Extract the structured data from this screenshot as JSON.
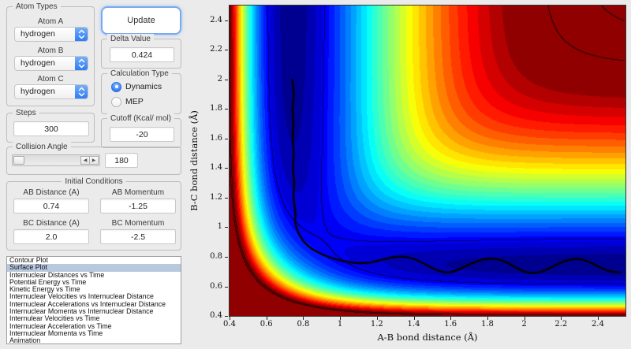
{
  "colors": {
    "background": "#ebebeb",
    "accent_blue": "#2e7bf6",
    "list_selection": "#b8c8de"
  },
  "atom_types": {
    "title": "Atom Types",
    "fields": [
      {
        "label": "Atom A",
        "value": "hydrogen"
      },
      {
        "label": "Atom B",
        "value": "hydrogen"
      },
      {
        "label": "Atom C",
        "value": "hydrogen"
      }
    ]
  },
  "update": {
    "label": "Update"
  },
  "delta_value": {
    "title": "Delta Value",
    "value": "0.424"
  },
  "calculation_type": {
    "title": "Calculation Type",
    "options": [
      {
        "label": "Dynamics",
        "selected": true
      },
      {
        "label": "MEP",
        "selected": false
      }
    ]
  },
  "steps": {
    "title": "Steps",
    "value": "300"
  },
  "cutoff": {
    "title": "Cutoff (Kcal/ mol)",
    "value": "-20"
  },
  "collision_angle": {
    "title": "Collision Angle",
    "value": "180"
  },
  "initial_conditions": {
    "title": "Initial Conditions",
    "fields": [
      {
        "label": "AB Distance (A)",
        "value": "0.74"
      },
      {
        "label": "AB Momentum",
        "value": "-1.25"
      },
      {
        "label": "BC Distance (A)",
        "value": "2.0"
      },
      {
        "label": "BC Momentum",
        "value": "-2.5"
      }
    ]
  },
  "plot_list": {
    "selected_index": 1,
    "items": [
      "Contour Plot",
      "Surface Plot",
      "Internuclear Distances vs Time",
      "Potential Energy vs Time",
      "Kinetic Energy vs Time",
      "Internuclear Velocities vs Internuclear Distance",
      "Internuclear Accelerations vs Internuclear Distance",
      "Internuclear Momenta vs Internuclear Distance",
      "Internulear Velocities vs Time",
      "Internuclear Acceleration vs Time",
      "Internuclear Momenta vs Time",
      "Animation"
    ]
  },
  "chart_data": {
    "type": "heatmap",
    "title": "",
    "xlabel": "A-B bond distance (Å)",
    "ylabel": "B-C bond distance (Å)",
    "xlim": [
      0.4,
      2.55
    ],
    "ylim": [
      0.4,
      2.5
    ],
    "xticks": [
      0.4,
      0.6,
      0.8,
      1,
      1.2,
      1.4,
      1.6,
      1.8,
      2,
      2.2,
      2.4
    ],
    "yticks": [
      0.4,
      0.6,
      0.8,
      1,
      1.2,
      1.4,
      1.6,
      1.8,
      2,
      2.2,
      2.4
    ],
    "colormap": "jet",
    "surface_model": "collinear LEPS H+H2 potential energy surface (kcal/mol)",
    "leps_params": {
      "D": 109.5,
      "beta": 1.9426,
      "re": 0.7414,
      "sato": 0.1386
    },
    "color_limits": [
      -110,
      -20
    ],
    "n_bands": 30,
    "contour_line_levels": [
      -100,
      -15,
      -10
    ],
    "grid": false,
    "legend": false,
    "trajectory": {
      "color": "#000000",
      "points": [
        [
          0.74,
          2.0
        ],
        [
          0.754,
          1.9
        ],
        [
          0.738,
          1.8
        ],
        [
          0.75,
          1.7
        ],
        [
          0.74,
          1.6
        ],
        [
          0.752,
          1.5
        ],
        [
          0.742,
          1.4
        ],
        [
          0.754,
          1.3
        ],
        [
          0.744,
          1.2
        ],
        [
          0.76,
          1.1
        ],
        [
          0.755,
          1.02
        ],
        [
          0.78,
          0.94
        ],
        [
          0.825,
          0.87
        ],
        [
          0.9,
          0.815
        ],
        [
          0.98,
          0.78
        ],
        [
          1.06,
          0.76
        ],
        [
          1.13,
          0.755
        ],
        [
          1.2,
          0.77
        ],
        [
          1.27,
          0.795
        ],
        [
          1.34,
          0.805
        ],
        [
          1.41,
          0.785
        ],
        [
          1.47,
          0.745
        ],
        [
          1.53,
          0.705
        ],
        [
          1.59,
          0.69
        ],
        [
          1.65,
          0.715
        ],
        [
          1.71,
          0.755
        ],
        [
          1.78,
          0.785
        ],
        [
          1.85,
          0.79
        ],
        [
          1.91,
          0.76
        ],
        [
          1.97,
          0.715
        ],
        [
          2.03,
          0.685
        ],
        [
          2.09,
          0.695
        ],
        [
          2.15,
          0.73
        ],
        [
          2.21,
          0.77
        ],
        [
          2.28,
          0.79
        ],
        [
          2.34,
          0.775
        ],
        [
          2.4,
          0.735
        ],
        [
          2.46,
          0.7
        ],
        [
          2.52,
          0.695
        ]
      ]
    }
  }
}
